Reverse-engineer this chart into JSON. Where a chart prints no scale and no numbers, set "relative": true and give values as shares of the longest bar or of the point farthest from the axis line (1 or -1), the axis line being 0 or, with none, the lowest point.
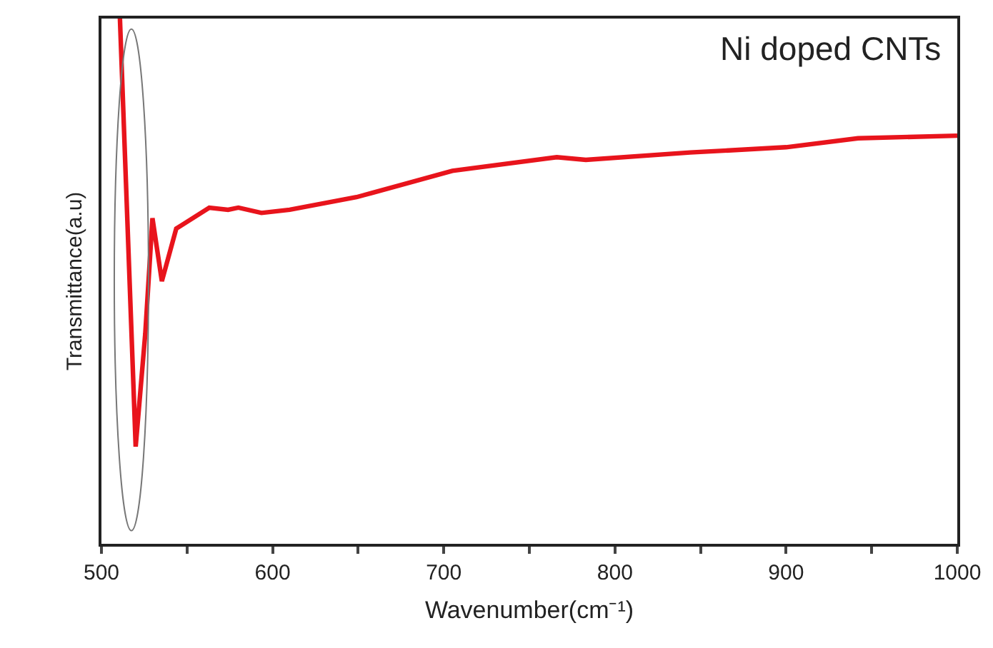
{
  "chart_data": {
    "type": "line",
    "title": "Ni doped CNTs",
    "xlabel": "Wavenumber(cm⁻¹)",
    "ylabel": "Transmittance(a.u)",
    "relative": true,
    "x": [
      510.8,
      520,
      525.6,
      529.8,
      535.3,
      543.7,
      563,
      574,
      580,
      593.5,
      610,
      649,
      658,
      705,
      766,
      783,
      844,
      900,
      942,
      1000
    ],
    "series": [
      {
        "color": "#e8141c",
        "values": [
          1.0,
          0.185,
          0.4,
          0.62,
          0.5,
          0.6,
          0.64,
          0.636,
          0.64,
          0.63,
          0.636,
          0.66,
          0.668,
          0.71,
          0.736,
          0.731,
          0.745,
          0.755,
          0.772,
          0.777
        ]
      }
    ],
    "xlim": [
      500,
      1000
    ],
    "xticks": [
      500,
      {
        "value": 550,
        "label": null
      },
      600,
      {
        "value": 650,
        "label": null
      },
      700,
      {
        "value": 750,
        "label": null
      },
      800,
      {
        "value": 850,
        "label": null
      },
      900,
      {
        "value": 950,
        "label": null
      },
      1000
    ],
    "grid": false,
    "marker": "none",
    "line_style": "solid"
  }
}
